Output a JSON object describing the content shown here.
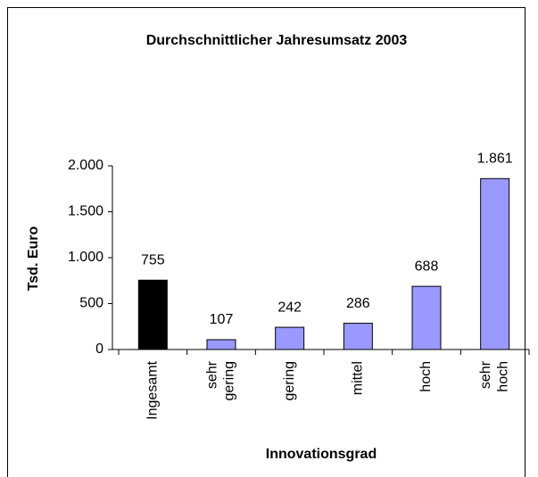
{
  "chart_data": {
    "type": "bar",
    "title": "Durchschnittlicher Jahresumsatz 2003",
    "ylabel": "Tsd. Euro",
    "xlabel": "Innovationsgrad",
    "categories": [
      "Ingesamt",
      "sehr gering",
      "gering",
      "mittel",
      "hoch",
      "sehr hoch"
    ],
    "values": [
      755,
      107,
      242,
      286,
      688,
      1861
    ],
    "value_labels": [
      "755",
      "107",
      "242",
      "286",
      "688",
      "1.861"
    ],
    "colors": [
      "#000000",
      "#9999ff",
      "#9999ff",
      "#9999ff",
      "#9999ff",
      "#9999ff"
    ],
    "ylim": [
      0,
      2000
    ],
    "yticks": [
      0,
      500,
      {
        "value": 1000,
        "label": "1.000"
      },
      {
        "value": 1500,
        "label": "1.500"
      },
      {
        "value": 2000,
        "label": "2.000"
      }
    ],
    "grid": false
  }
}
